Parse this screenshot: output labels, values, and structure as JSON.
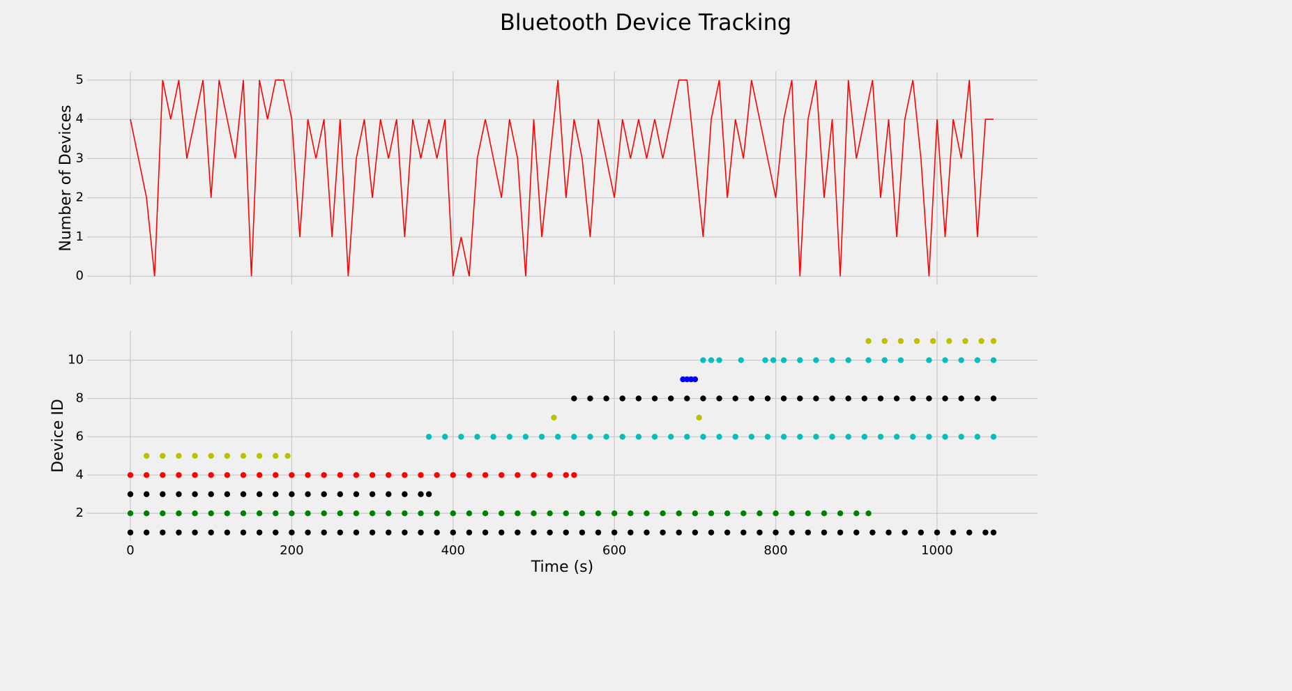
{
  "title": "Bluetooth Device Tracking",
  "chart_data": [
    {
      "type": "line",
      "ylabel": "Number of Devices",
      "color": "#ff0000",
      "grid": true,
      "xlim": [
        -53.6,
        1124.5
      ],
      "ylim": [
        -0.21,
        5.21
      ],
      "yticks": [
        0,
        1,
        2,
        3,
        4,
        5
      ],
      "x": [
        0,
        10,
        20,
        30,
        40,
        50,
        60,
        70,
        80,
        90,
        100,
        110,
        120,
        130,
        140,
        150,
        160,
        170,
        180,
        190,
        200,
        210,
        220,
        230,
        240,
        250,
        260,
        270,
        280,
        290,
        300,
        310,
        320,
        330,
        340,
        350,
        360,
        370,
        380,
        390,
        400,
        410,
        420,
        430,
        440,
        450,
        460,
        470,
        480,
        490,
        500,
        510,
        520,
        530,
        540,
        550,
        560,
        570,
        580,
        590,
        600,
        610,
        620,
        630,
        640,
        650,
        660,
        670,
        680,
        690,
        700,
        710,
        720,
        730,
        740,
        750,
        760,
        770,
        780,
        790,
        800,
        810,
        820,
        830,
        840,
        850,
        860,
        870,
        880,
        890,
        900,
        910,
        920,
        930,
        940,
        950,
        960,
        970,
        980,
        990,
        1000,
        1010,
        1020,
        1030,
        1040,
        1050,
        1060,
        1070
      ],
      "values": [
        4,
        3,
        2,
        0,
        5,
        4,
        5,
        3,
        4,
        5,
        2,
        5,
        4,
        3,
        5,
        0,
        5,
        4,
        5,
        5,
        4,
        1,
        4,
        3,
        4,
        1,
        4,
        0,
        3,
        4,
        2,
        4,
        3,
        4,
        1,
        4,
        3,
        4,
        3,
        4,
        0,
        1,
        0,
        3,
        4,
        3,
        2,
        4,
        3,
        0,
        4,
        1,
        3,
        5,
        2,
        4,
        3,
        1,
        4,
        3,
        2,
        4,
        3,
        4,
        3,
        4,
        3,
        4,
        5,
        5,
        3,
        1,
        4,
        5,
        2,
        4,
        3,
        5,
        4,
        3,
        2,
        4,
        5,
        0,
        4,
        5,
        2,
        4,
        0,
        5,
        3,
        4,
        5,
        2,
        4,
        1,
        4,
        5,
        3,
        0,
        4,
        1,
        4,
        3,
        5,
        1,
        4,
        4
      ]
    },
    {
      "type": "scatter",
      "xlabel": "Time (s)",
      "ylabel": "Device ID",
      "grid": true,
      "xlim": [
        -53.6,
        1124.5
      ],
      "ylim": [
        0.55,
        11.55
      ],
      "yticks": [
        2,
        4,
        6,
        8,
        10
      ],
      "xticks": [
        0,
        200,
        400,
        600,
        800,
        1000
      ],
      "series": [
        {
          "color": "#000000",
          "x": [
            0,
            20,
            40,
            60,
            80,
            100,
            120,
            140,
            160,
            180,
            200,
            220,
            240,
            260,
            280,
            300,
            320,
            340,
            360,
            380,
            400,
            420,
            440,
            460,
            480,
            500,
            520,
            540,
            560,
            580,
            600,
            620,
            640,
            660,
            680,
            700,
            720,
            740,
            760,
            780,
            800,
            820,
            840,
            860,
            880,
            900,
            920,
            940,
            960,
            980,
            1000,
            1020,
            1040,
            1060,
            1070
          ],
          "values": [
            1,
            1,
            1,
            1,
            1,
            1,
            1,
            1,
            1,
            1,
            1,
            1,
            1,
            1,
            1,
            1,
            1,
            1,
            1,
            1,
            1,
            1,
            1,
            1,
            1,
            1,
            1,
            1,
            1,
            1,
            1,
            1,
            1,
            1,
            1,
            1,
            1,
            1,
            1,
            1,
            1,
            1,
            1,
            1,
            1,
            1,
            1,
            1,
            1,
            1,
            1,
            1,
            1,
            1,
            1
          ]
        },
        {
          "color": "#008000",
          "x": [
            0,
            20,
            40,
            60,
            80,
            100,
            120,
            140,
            160,
            180,
            200,
            220,
            240,
            260,
            280,
            300,
            320,
            340,
            360,
            380,
            400,
            420,
            440,
            460,
            480,
            500,
            520,
            540,
            560,
            580,
            600,
            620,
            640,
            660,
            680,
            700,
            720,
            740,
            760,
            780,
            800,
            820,
            840,
            860,
            880,
            900,
            915
          ],
          "values": [
            2,
            2,
            2,
            2,
            2,
            2,
            2,
            2,
            2,
            2,
            2,
            2,
            2,
            2,
            2,
            2,
            2,
            2,
            2,
            2,
            2,
            2,
            2,
            2,
            2,
            2,
            2,
            2,
            2,
            2,
            2,
            2,
            2,
            2,
            2,
            2,
            2,
            2,
            2,
            2,
            2,
            2,
            2,
            2,
            2,
            2,
            2
          ]
        },
        {
          "color": "#000000",
          "x": [
            0,
            20,
            40,
            60,
            80,
            100,
            120,
            140,
            160,
            180,
            200,
            220,
            240,
            260,
            280,
            300,
            320,
            340,
            360,
            370
          ],
          "values": [
            3,
            3,
            3,
            3,
            3,
            3,
            3,
            3,
            3,
            3,
            3,
            3,
            3,
            3,
            3,
            3,
            3,
            3,
            3,
            3
          ]
        },
        {
          "color": "#ff0000",
          "x": [
            0,
            20,
            40,
            60,
            80,
            100,
            120,
            140,
            160,
            180,
            200,
            220,
            240,
            260,
            280,
            300,
            320,
            340,
            360,
            380,
            400,
            420,
            440,
            460,
            480,
            500,
            520,
            540,
            550
          ],
          "values": [
            4,
            4,
            4,
            4,
            4,
            4,
            4,
            4,
            4,
            4,
            4,
            4,
            4,
            4,
            4,
            4,
            4,
            4,
            4,
            4,
            4,
            4,
            4,
            4,
            4,
            4,
            4,
            4,
            4
          ]
        },
        {
          "color": "#bfbf00",
          "x": [
            20,
            40,
            60,
            80,
            100,
            120,
            140,
            160,
            180,
            195
          ],
          "values": [
            5,
            5,
            5,
            5,
            5,
            5,
            5,
            5,
            5,
            5
          ]
        },
        {
          "color": "#00bfbf",
          "x": [
            370,
            390,
            410,
            430,
            450,
            470,
            490,
            510,
            530,
            550,
            570,
            590,
            610,
            630,
            650,
            670,
            690,
            710,
            730,
            750,
            770,
            790,
            810,
            830,
            850,
            870,
            890,
            910,
            930,
            950,
            970,
            990,
            1010,
            1030,
            1050,
            1070
          ],
          "values": [
            6,
            6,
            6,
            6,
            6,
            6,
            6,
            6,
            6,
            6,
            6,
            6,
            6,
            6,
            6,
            6,
            6,
            6,
            6,
            6,
            6,
            6,
            6,
            6,
            6,
            6,
            6,
            6,
            6,
            6,
            6,
            6,
            6,
            6,
            6,
            6
          ]
        },
        {
          "color": "#bfbf00",
          "x": [
            525,
            705
          ],
          "values": [
            7,
            7
          ]
        },
        {
          "color": "#000000",
          "x": [
            550,
            570,
            590,
            610,
            630,
            650,
            670,
            690,
            710,
            730,
            750,
            770,
            790,
            810,
            830,
            850,
            870,
            890,
            910,
            930,
            950,
            970,
            990,
            1010,
            1030,
            1050,
            1070
          ],
          "values": [
            8,
            8,
            8,
            8,
            8,
            8,
            8,
            8,
            8,
            8,
            8,
            8,
            8,
            8,
            8,
            8,
            8,
            8,
            8,
            8,
            8,
            8,
            8,
            8,
            8,
            8,
            8
          ]
        },
        {
          "color": "#0000ff",
          "x": [
            685,
            690,
            695,
            700
          ],
          "values": [
            9,
            9,
            9,
            9
          ]
        },
        {
          "color": "#00bfbf",
          "x": [
            710,
            720,
            730,
            757,
            787,
            797,
            810,
            830,
            850,
            870,
            890,
            915,
            935,
            955,
            990,
            1010,
            1030,
            1050,
            1070
          ],
          "values": [
            10,
            10,
            10,
            10,
            10,
            10,
            10,
            10,
            10,
            10,
            10,
            10,
            10,
            10,
            10,
            10,
            10,
            10,
            10
          ]
        },
        {
          "color": "#bfbf00",
          "x": [
            915,
            935,
            955,
            975,
            995,
            1015,
            1035,
            1055,
            1070
          ],
          "values": [
            11,
            11,
            11,
            11,
            11,
            11,
            11,
            11,
            11
          ]
        }
      ]
    }
  ]
}
